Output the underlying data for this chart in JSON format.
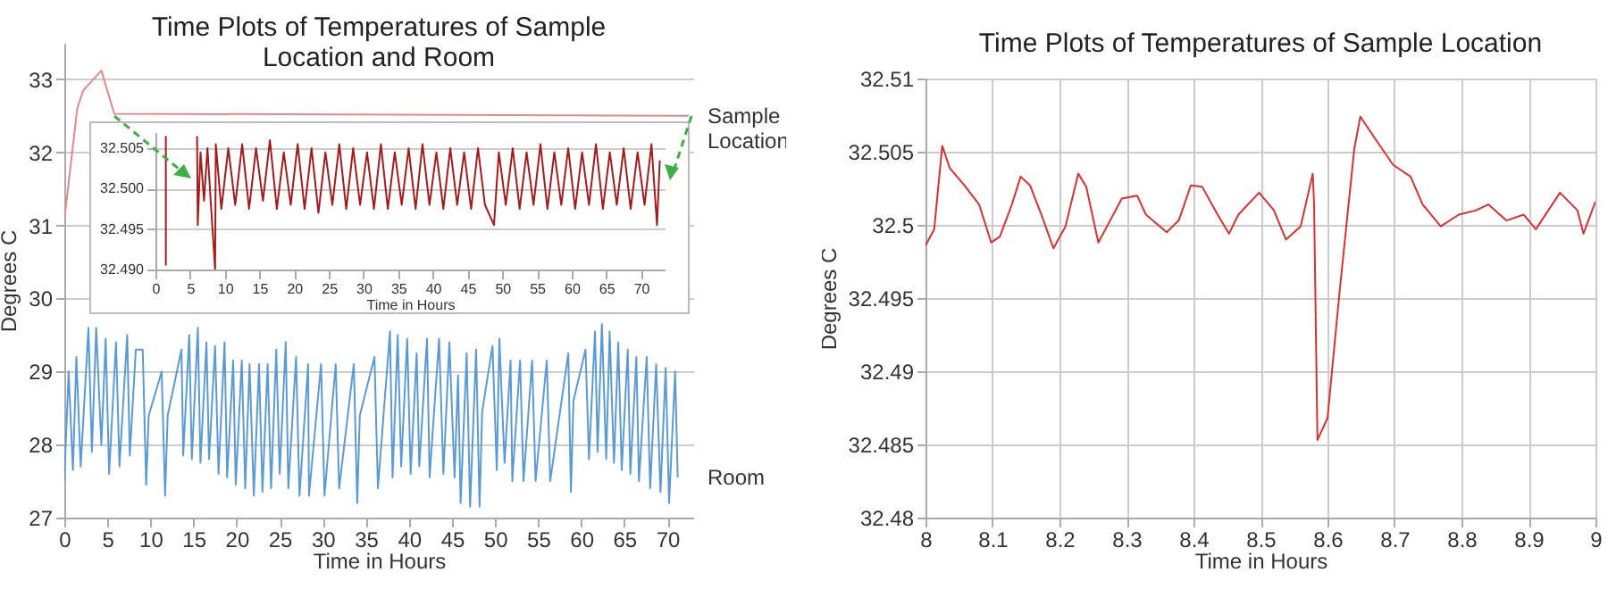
{
  "chart_data": [
    {
      "type": "line",
      "title": "Time Plots of Temperatures of Sample\nLocation and Room",
      "xlabel": "Time in Hours",
      "ylabel": "Degrees C",
      "xlim": [
        0,
        73
      ],
      "ylim": [
        27,
        33.5
      ],
      "xticks": [
        0,
        5,
        10,
        15,
        20,
        25,
        30,
        35,
        40,
        45,
        50,
        55,
        60,
        65,
        70
      ],
      "yticks": [
        27,
        28,
        29,
        30,
        31,
        32,
        33
      ],
      "grid": "y",
      "series": [
        {
          "name": "Sample Location",
          "color": "#e08a8a",
          "x": [
            0,
            1.5,
            2.2,
            4.3,
            5.8,
            72.5
          ],
          "values": [
            31.07,
            32.6,
            32.85,
            33.12,
            32.53,
            32.5
          ]
        },
        {
          "name": "Room",
          "color": "#5b9bd5",
          "x": [
            0,
            0.5,
            1.0,
            1.4,
            1.9,
            2.8,
            3.2,
            3.7,
            4.3,
            4.8,
            5.2,
            6.0,
            6.4,
            7.3,
            7.6,
            8.3,
            9.1,
            9.5,
            9.8,
            11.3,
            11.7,
            12.0,
            13.6,
            13.8,
            14.5,
            14.8,
            15.5,
            15.8,
            16.5,
            16.8,
            17.5,
            17.9,
            18.6,
            18.9,
            19.6,
            19.9,
            20.6,
            21.0,
            21.5,
            22.0,
            22.6,
            23.0,
            23.6,
            24.0,
            24.6,
            25.0,
            25.7,
            26.0,
            26.9,
            27.3,
            28.3,
            28.4,
            29.8,
            30.2,
            31.5,
            31.9,
            33.6,
            34.0,
            34.3,
            36.0,
            36.4,
            37.8,
            38.1,
            38.7,
            39.1,
            39.8,
            40.2,
            40.9,
            41.2,
            42.1,
            42.4,
            43.5,
            44.0,
            44.7,
            45.3,
            45.7,
            46.0,
            46.7,
            47.1,
            47.8,
            48.2,
            48.5,
            49.7,
            50.2,
            50.5,
            51.1,
            51.8,
            52.0,
            52.9,
            53.3,
            54.3,
            54.7,
            56.0,
            56.4,
            58.5,
            58.8,
            59.1,
            60.5,
            60.9,
            61.6,
            61.9,
            62.4,
            62.9,
            63.3,
            63.8,
            64.3,
            64.7,
            65.4,
            65.7,
            66.4,
            66.7,
            67.6,
            68.0,
            68.7,
            69.2,
            69.8,
            70.2,
            70.9,
            71.2
          ],
          "values": [
            27.5,
            29.0,
            27.65,
            29.2,
            27.7,
            29.6,
            27.9,
            29.6,
            28.0,
            29.45,
            27.6,
            29.4,
            27.7,
            29.5,
            27.85,
            29.3,
            29.3,
            27.45,
            28.4,
            29.0,
            27.3,
            28.4,
            29.3,
            27.85,
            29.5,
            27.8,
            29.6,
            27.75,
            29.4,
            27.8,
            29.35,
            27.6,
            29.4,
            27.55,
            29.15,
            27.45,
            29.15,
            27.4,
            29.1,
            27.3,
            29.1,
            27.35,
            29.1,
            27.4,
            29.3,
            27.6,
            29.4,
            27.4,
            29.2,
            27.3,
            29.1,
            27.3,
            29.1,
            27.3,
            29.1,
            27.4,
            29.1,
            27.2,
            28.4,
            29.2,
            27.4,
            29.55,
            27.55,
            29.5,
            27.7,
            29.45,
            27.6,
            29.25,
            27.7,
            29.45,
            27.55,
            29.45,
            27.6,
            29.4,
            27.55,
            28.95,
            27.2,
            29.25,
            27.15,
            29.3,
            27.15,
            28.45,
            29.35,
            27.65,
            29.45,
            27.75,
            29.15,
            27.5,
            29.15,
            27.5,
            29.15,
            27.5,
            29.15,
            27.5,
            29.25,
            27.35,
            28.6,
            29.3,
            27.8,
            29.55,
            27.9,
            29.65,
            27.8,
            29.55,
            27.75,
            29.4,
            27.65,
            29.3,
            27.6,
            29.2,
            27.5,
            29.2,
            27.4,
            29.1,
            27.35,
            29.05,
            27.2,
            29.0,
            27.55
          ]
        }
      ]
    },
    {
      "type": "line",
      "title": "Time Plots of Temperatures of Sample  Location",
      "xlabel": "Time in Hours",
      "ylabel": "Degrees C",
      "xlim": [
        8,
        9
      ],
      "ylim": [
        32.48,
        32.51
      ],
      "xticks": [
        8,
        8.1,
        8.2,
        8.3,
        8.4,
        8.5,
        8.6,
        8.7,
        8.8,
        8.9,
        9
      ],
      "yticks": [
        32.48,
        32.485,
        32.49,
        32.495,
        32.5,
        32.505,
        32.51
      ],
      "grid": true,
      "series": [
        {
          "color": "#d93030",
          "x": [
            8.0,
            8.013,
            8.025,
            8.036,
            8.058,
            8.08,
            8.098,
            8.111,
            8.129,
            8.142,
            8.156,
            8.173,
            8.191,
            8.209,
            8.228,
            8.24,
            8.258,
            8.271,
            8.293,
            8.316,
            8.329,
            8.36,
            8.378,
            8.396,
            8.413,
            8.436,
            8.453,
            8.467,
            8.498,
            8.52,
            8.538,
            8.56,
            8.578,
            8.58,
            8.585,
            8.6,
            8.618,
            8.64,
            8.649,
            8.671,
            8.698,
            8.724,
            8.742,
            8.769,
            8.796,
            8.822,
            8.84,
            8.867,
            8.893,
            8.911,
            8.947,
            8.973,
            8.982,
            9.0
          ],
          "values": [
            32.4986,
            32.4997,
            32.5054,
            32.5039,
            32.5027,
            32.5014,
            32.4988,
            32.4992,
            32.5014,
            32.5033,
            32.5027,
            32.5007,
            32.4984,
            32.4999,
            32.5035,
            32.5026,
            32.4988,
            32.4999,
            32.5018,
            32.502,
            32.5007,
            32.4995,
            32.5003,
            32.5027,
            32.5026,
            32.5007,
            32.4994,
            32.5007,
            32.5022,
            32.501,
            32.499,
            32.4999,
            32.5035,
            32.5014,
            32.4853,
            32.4868,
            32.4954,
            32.5052,
            32.5074,
            32.5059,
            32.5041,
            32.5033,
            32.5014,
            32.4999,
            32.5007,
            32.501,
            32.5014,
            32.5003,
            32.5007,
            32.4997,
            32.5022,
            32.501,
            32.4994,
            32.5016
          ]
        }
      ]
    },
    {
      "type": "line",
      "xlabel": "Time in Hours",
      "xlim": [
        0,
        73.4
      ],
      "ylim": [
        32.49,
        32.507
      ],
      "xticks": [
        0,
        5,
        10,
        15,
        20,
        25,
        30,
        35,
        40,
        45,
        50,
        55,
        60,
        65,
        70
      ],
      "yticks": [
        {
          "value": 32.49,
          "label": "32.490"
        },
        32.495,
        {
          "value": 32.5,
          "label": "32.500"
        },
        32.505
      ],
      "grid": "y",
      "series": [
        {
          "color": "#a31b1b",
          "x": [
            1.5,
            1.5,
            1.6,
            6.0,
            6.1,
            6.5,
            7.0,
            7.5,
            8.0,
            8.6,
            8.7,
            9.5,
            10.5,
            11.5,
            12.5,
            13.5,
            14.5,
            15.5,
            16.5,
            17.5,
            18.5,
            19.5,
            20.5,
            21.5,
            22.5,
            23.5,
            24.5,
            25.5,
            26.5,
            27.5,
            28.5,
            29.5,
            30.5,
            31.5,
            32.5,
            33.5,
            34.5,
            35.5,
            36.5,
            37.5,
            38.5,
            39.5,
            40.5,
            41.5,
            42.5,
            43.5,
            44.5,
            45.5,
            46.5,
            47.5,
            48.8,
            49.5,
            50.5,
            51.5,
            52.5,
            53.5,
            54.5,
            55.5,
            56.5,
            57.5,
            58.5,
            59.5,
            60.5,
            61.5,
            62.5,
            63.5,
            64.5,
            65.5,
            66.5,
            67.5,
            68.5,
            69.5,
            70.5,
            71.5,
            72.3,
            72.7
          ],
          "values": [
            32.5065,
            32.4905,
            null,
            32.5065,
            32.4955,
            32.5045,
            32.4985,
            32.505,
            32.498,
            32.49,
            32.5055,
            32.4975,
            32.505,
            32.498,
            32.5055,
            32.4975,
            32.505,
            32.4985,
            32.506,
            32.4975,
            32.5045,
            32.498,
            32.5055,
            32.4975,
            32.505,
            32.497,
            32.5045,
            32.498,
            32.5055,
            32.4975,
            32.505,
            32.498,
            32.5045,
            32.4975,
            32.5055,
            32.4975,
            32.5045,
            32.498,
            32.505,
            32.4975,
            32.5055,
            32.498,
            32.5045,
            32.4975,
            32.505,
            32.498,
            32.5045,
            32.4975,
            32.505,
            32.498,
            32.4955,
            32.5045,
            32.498,
            32.505,
            32.4975,
            32.5045,
            32.498,
            32.5055,
            32.4975,
            32.5045,
            32.498,
            32.505,
            32.4975,
            32.5045,
            32.498,
            32.5055,
            32.4975,
            32.5045,
            32.498,
            32.505,
            32.4975,
            32.5045,
            32.498,
            32.5055,
            32.4955,
            32.5035
          ]
        }
      ]
    }
  ]
}
